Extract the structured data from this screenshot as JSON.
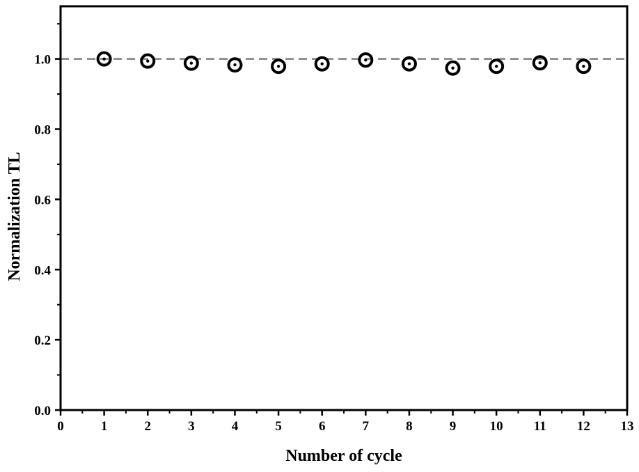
{
  "chart_data": {
    "type": "scatter",
    "title": "",
    "xlabel": "Number of cycle",
    "ylabel": "Normalization TL",
    "xlim": [
      0,
      13
    ],
    "ylim": [
      0.0,
      1.15
    ],
    "x_ticks": [
      "0",
      "1",
      "2",
      "3",
      "4",
      "5",
      "6",
      "7",
      "8",
      "9",
      "10",
      "11",
      "12",
      "13"
    ],
    "y_ticks": [
      "0.0",
      "0.2",
      "0.4",
      "0.6",
      "0.8",
      "1.0"
    ],
    "grid": false,
    "legend": false,
    "reference_line": {
      "y": 1.0,
      "style": "dashed",
      "color": "#808080"
    },
    "marker": "circle-with-dot",
    "marker_color": "#000000",
    "series": [
      {
        "x": [
          1,
          2,
          3,
          4,
          5,
          6,
          7,
          8,
          9,
          10,
          11,
          12
        ],
        "y": [
          1.0,
          0.994,
          0.988,
          0.983,
          0.979,
          0.986,
          0.997,
          0.986,
          0.974,
          0.979,
          0.989,
          0.979
        ]
      }
    ]
  }
}
